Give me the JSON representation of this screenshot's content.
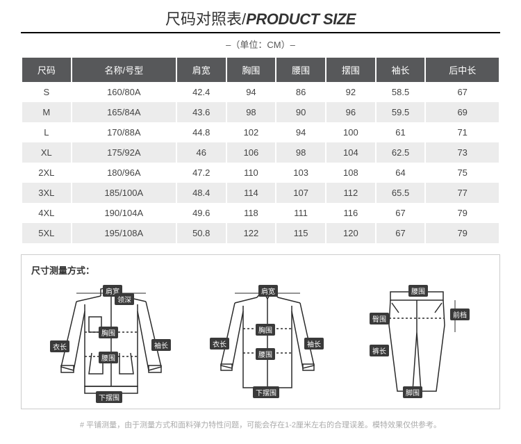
{
  "title_cn": "尺码对照表/",
  "title_en": "PRODUCT SIZE",
  "unit_text": "–（单位：CM）–",
  "columns": [
    "尺码",
    "名称/号型",
    "肩宽",
    "胸围",
    "腰围",
    "摆围",
    "袖长",
    "后中长"
  ],
  "rows": [
    [
      "S",
      "160/80A",
      "42.4",
      "94",
      "86",
      "92",
      "58.5",
      "67"
    ],
    [
      "M",
      "165/84A",
      "43.6",
      "98",
      "90",
      "96",
      "59.5",
      "69"
    ],
    [
      "L",
      "170/88A",
      "44.8",
      "102",
      "94",
      "100",
      "61",
      "71"
    ],
    [
      "XL",
      "175/92A",
      "46",
      "106",
      "98",
      "104",
      "62.5",
      "73"
    ],
    [
      "2XL",
      "180/96A",
      "47.2",
      "110",
      "103",
      "108",
      "64",
      "75"
    ],
    [
      "3XL",
      "185/100A",
      "48.4",
      "114",
      "107",
      "112",
      "65.5",
      "77"
    ],
    [
      "4XL",
      "190/104A",
      "49.6",
      "118",
      "111",
      "116",
      "67",
      "79"
    ],
    [
      "5XL",
      "195/108A",
      "50.8",
      "122",
      "115",
      "120",
      "67",
      "79"
    ]
  ],
  "header_bg": "#57585a",
  "alt_bg": "#ececec",
  "measure_title": "尺寸测量方式：",
  "d1_tags": {
    "jiankuan": "肩宽",
    "lingshen": "领深",
    "xiongwei": "胸围",
    "yichang": "衣长",
    "yaowei": "腰围",
    "xiuchang": "袖长",
    "xiabaiwei": "下摆围"
  },
  "d2_tags": {
    "jiankuan": "肩宽",
    "xiongwei": "胸围",
    "yichang": "衣长",
    "yaowei": "腰围",
    "xiuchang": "袖长",
    "xiabaiwei": "下摆围"
  },
  "d3_tags": {
    "yaowei": "腰围",
    "tunwei": "臀围",
    "qiandang": "前档",
    "kuchang": "裤长",
    "jiaowei": "脚围"
  },
  "footnote": "# 平铺测量，由于测量方式和面料弹力特性问题，可能会存在1-2厘米左右的合理误差。模特效果仅供参考。"
}
